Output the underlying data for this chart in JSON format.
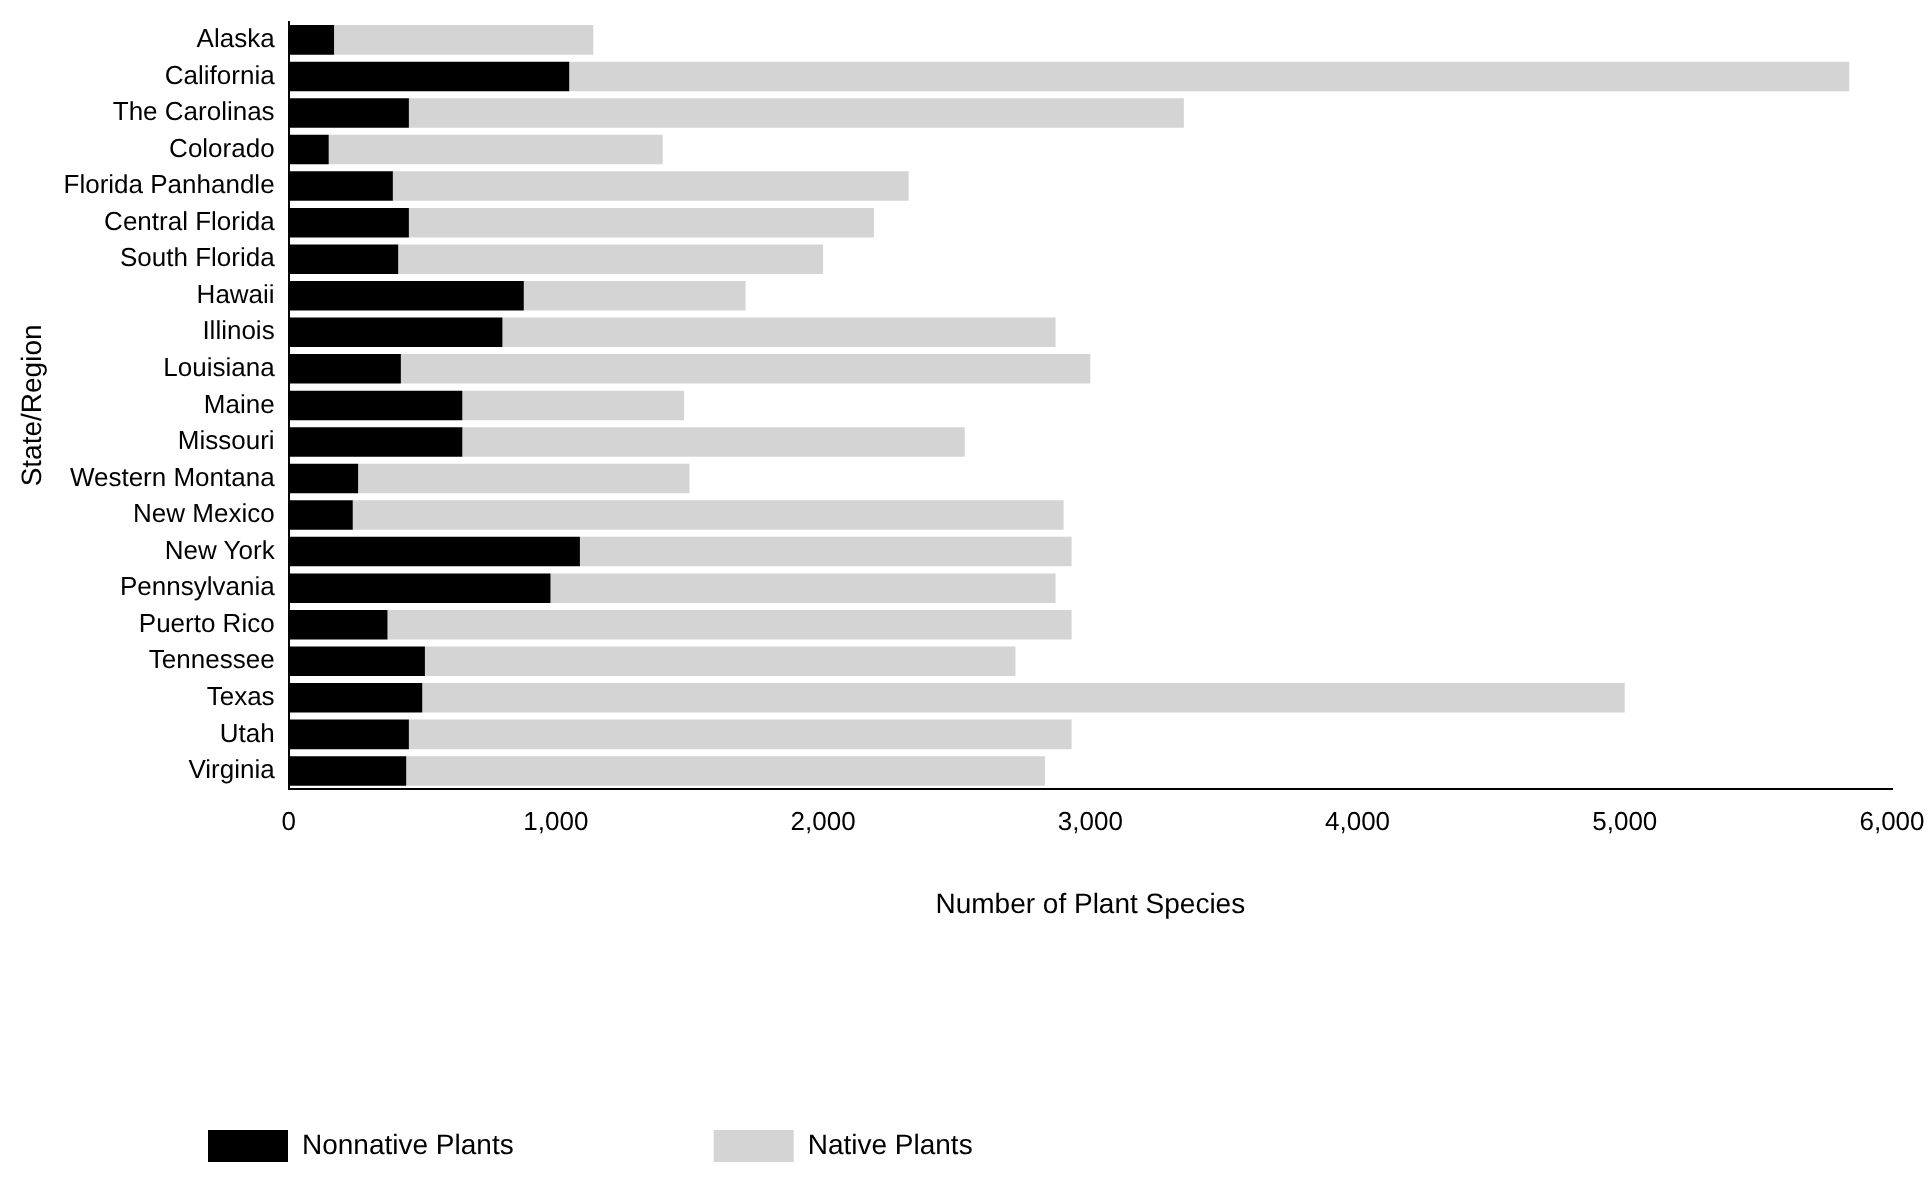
{
  "chart_data": {
    "type": "bar",
    "orientation": "horizontal",
    "stacked": true,
    "xlabel": "Number of Plant Species",
    "ylabel": "State/Region",
    "categories": [
      "Alaska",
      "California",
      "The Carolinas",
      "Colorado",
      "Florida Panhandle",
      "Central Florida",
      "South Florida",
      "Hawaii",
      "Illinois",
      "Louisiana",
      "Maine",
      "Missouri",
      "Western Montana",
      "New Mexico",
      "New York",
      "Pennsylvania",
      "Puerto Rico",
      "Tennessee",
      "Texas",
      "Utah",
      "Virginia"
    ],
    "series": [
      {
        "name": "Nonnative Plants",
        "color": "#000000",
        "values": [
          170,
          1050,
          450,
          150,
          390,
          450,
          410,
          880,
          800,
          420,
          650,
          650,
          260,
          240,
          1090,
          980,
          370,
          510,
          500,
          450,
          440
        ]
      },
      {
        "name": "Native Plants",
        "color": "#d4d4d4",
        "values": [
          970,
          4790,
          2900,
          1250,
          1930,
          1740,
          1590,
          830,
          2070,
          2580,
          830,
          1880,
          1240,
          2660,
          1840,
          1890,
          2560,
          2210,
          4500,
          2480,
          2390
        ]
      }
    ],
    "xlim": [
      0,
      6000
    ],
    "xticks": [
      {
        "value": 0,
        "label": "0"
      },
      {
        "value": 1000,
        "label": "1,000"
      },
      {
        "value": 2000,
        "label": "2,000"
      },
      {
        "value": 3000,
        "label": "3,000"
      },
      {
        "value": 4000,
        "label": "4,000"
      },
      {
        "value": 5000,
        "label": "5,000"
      },
      {
        "value": 6000,
        "label": "6,000"
      }
    ],
    "grid": false,
    "legend": "bottom left"
  }
}
